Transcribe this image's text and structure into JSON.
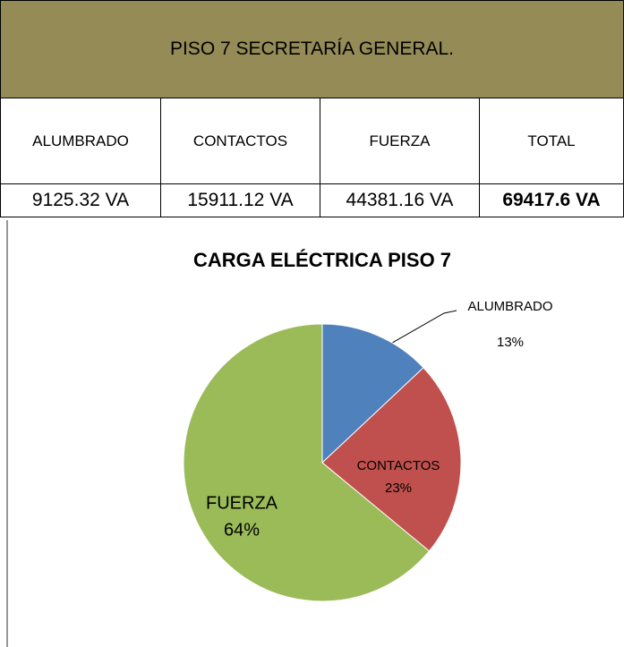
{
  "table": {
    "title": "PISO 7 SECRETARÍA GENERAL.",
    "headers": [
      "ALUMBRADO",
      "CONTACTOS",
      "FUERZA",
      "TOTAL"
    ],
    "rows": [
      [
        "9125.32 VA",
        "15911.12 VA",
        "44381.16 VA",
        "69417.6 VA"
      ]
    ]
  },
  "chart_data": {
    "type": "pie",
    "title": "CARGA ELÉCTRICA PISO 7",
    "categories": [
      "ALUMBRADO",
      "CONTACTOS",
      "FUERZA"
    ],
    "values": [
      13,
      23,
      64
    ],
    "value_labels": [
      "13%",
      "23%",
      "64%"
    ],
    "colors": [
      "#4f81bd",
      "#c0504d",
      "#9bbb59"
    ]
  }
}
